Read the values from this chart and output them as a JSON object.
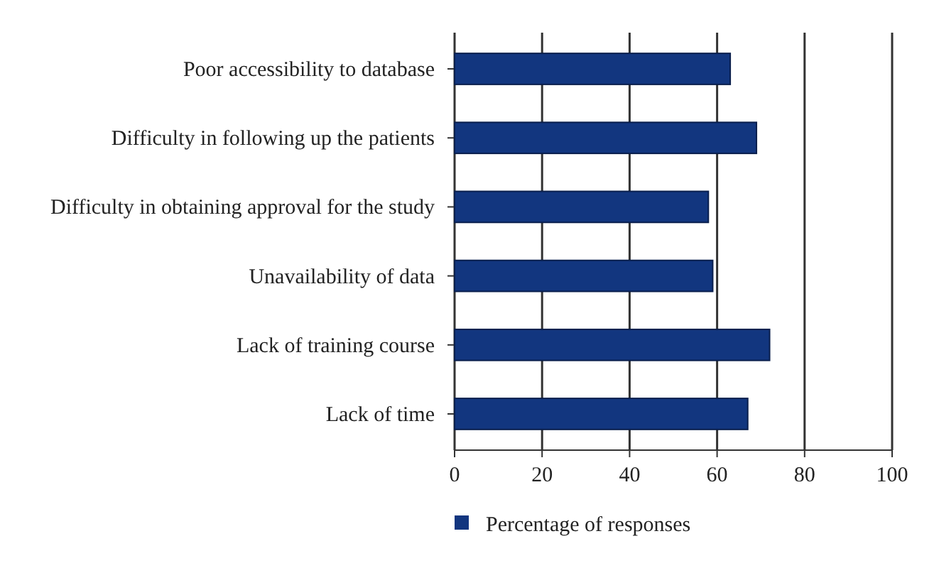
{
  "chart_data": {
    "type": "bar",
    "orientation": "horizontal",
    "categories": [
      "Poor accessibility to database",
      "Difficulty in following up the patients",
      "Difficulty in obtaining approval for the study",
      "Unavailability of data",
      "Lack of training course",
      "Lack of time"
    ],
    "series": [
      {
        "name": "Percentage of responses",
        "color": "#12367f",
        "values": [
          63,
          69,
          58,
          59,
          72,
          67
        ]
      }
    ],
    "xlim": [
      0,
      100
    ],
    "xticks": [
      0,
      20,
      40,
      60,
      80,
      100
    ],
    "grid": "x",
    "legend": "bottom"
  }
}
